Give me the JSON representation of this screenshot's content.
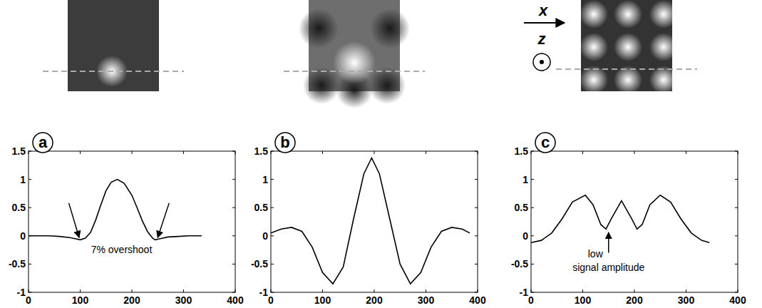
{
  "chart_data": [
    {
      "type": "line",
      "label": "a",
      "annotations": [
        "7% overshoot"
      ],
      "x": [
        0,
        20,
        40,
        60,
        80,
        90,
        100,
        110,
        120,
        130,
        140,
        150,
        160,
        172,
        185,
        200,
        210,
        220,
        230,
        240,
        245,
        255,
        270,
        290,
        310,
        335
      ],
      "series": [
        {
          "color": "#000000",
          "values": [
            0,
            0,
            0,
            -0.01,
            -0.03,
            -0.05,
            -0.07,
            -0.04,
            0.06,
            0.28,
            0.55,
            0.8,
            0.95,
            1.0,
            0.93,
            0.72,
            0.5,
            0.27,
            0.08,
            -0.04,
            -0.07,
            -0.05,
            -0.02,
            -0.01,
            0,
            0
          ]
        }
      ],
      "xlim": [
        0,
        400
      ],
      "ylim": [
        -1,
        1.5
      ],
      "xticks": [
        0,
        100,
        200,
        300,
        400
      ],
      "yticks": [
        -1,
        -0.5,
        0,
        0.5,
        1,
        1.5
      ]
    },
    {
      "type": "line",
      "label": "b",
      "x": [
        0,
        20,
        40,
        60,
        80,
        100,
        120,
        140,
        160,
        180,
        195,
        210,
        230,
        250,
        270,
        290,
        310,
        330,
        350,
        370,
        385
      ],
      "series": [
        {
          "color": "#000000",
          "values": [
            0.05,
            0.12,
            0.15,
            0.08,
            -0.2,
            -0.65,
            -0.85,
            -0.55,
            0.3,
            1.1,
            1.38,
            1.1,
            0.3,
            -0.5,
            -0.85,
            -0.65,
            -0.2,
            0.08,
            0.15,
            0.12,
            0.05
          ]
        }
      ],
      "xlim": [
        0,
        400
      ],
      "ylim": [
        -1,
        1.5
      ],
      "xticks": [
        0,
        100,
        200,
        300,
        400
      ],
      "yticks": [
        -1,
        -0.5,
        0,
        0.5,
        1,
        1.5
      ]
    },
    {
      "type": "line",
      "label": "c",
      "annotations": [
        "low signal amplitude"
      ],
      "x": [
        0,
        20,
        40,
        60,
        80,
        105,
        120,
        135,
        145,
        155,
        175,
        195,
        205,
        215,
        230,
        250,
        270,
        290,
        310,
        330,
        345
      ],
      "series": [
        {
          "color": "#000000",
          "values": [
            -0.12,
            -0.08,
            0.05,
            0.3,
            0.6,
            0.72,
            0.55,
            0.2,
            0.12,
            0.3,
            0.62,
            0.3,
            0.12,
            0.2,
            0.55,
            0.72,
            0.6,
            0.3,
            0.05,
            -0.08,
            -0.12
          ]
        }
      ],
      "xlim": [
        0,
        400
      ],
      "ylim": [
        -1,
        1.5
      ],
      "xticks": [
        0,
        100,
        200,
        300,
        400
      ],
      "yticks": [
        -1,
        -0.5,
        0,
        0.5,
        1,
        1.5
      ]
    }
  ],
  "axes_indicator": {
    "horizontal": "x",
    "normal": "z"
  }
}
